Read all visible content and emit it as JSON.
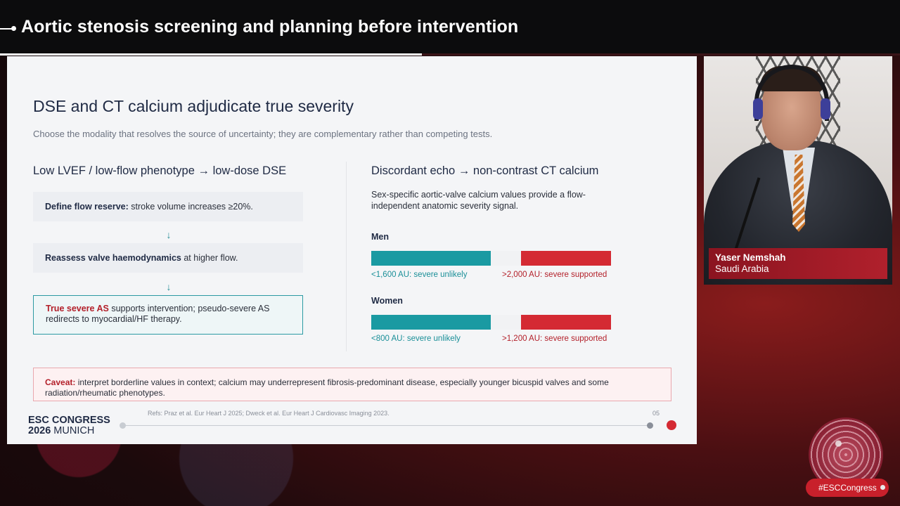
{
  "header": {
    "title": "Aortic stenosis screening and planning before intervention"
  },
  "slide": {
    "title": "DSE and CT calcium adjudicate true severity",
    "subtitle": "Choose the modality that resolves the source of uncertainty; they are complementary rather than competing tests.",
    "left": {
      "heading": "Low LVEF / low-flow phenotype → low-dose DSE",
      "steps": [
        {
          "bold": "Define flow reserve:",
          "text": " stroke volume increases ≥20%."
        },
        {
          "bold": "Reassess valve haemodynamics",
          "text": " at higher flow."
        },
        {
          "bold": "True severe AS",
          "text": " supports intervention; pseudo-severe AS redirects to myocardial/HF therapy."
        }
      ],
      "arrow": "↓"
    },
    "right": {
      "heading": "Discordant echo → non-contrast CT calcium",
      "description": "Sex-specific aortic-valve calcium values provide a flow-independent anatomic severity signal.",
      "groups": [
        {
          "label": "Men",
          "low_label": "<1,600 AU: severe unlikely",
          "high_label": ">2,000 AU: severe supported",
          "low_color": "#1a9aa2",
          "high_color": "#d42a33"
        },
        {
          "label": "Women",
          "low_label": "<800 AU: severe unlikely",
          "high_label": ">1,200 AU: severe supported",
          "low_color": "#1a9aa2",
          "high_color": "#d42a33"
        }
      ]
    },
    "caveat": {
      "bold": "Caveat:",
      "text": " interpret borderline values in context; calcium may underrepresent fibrosis-predominant disease, especially younger bicuspid valves and some radiation/rheumatic phenotypes."
    },
    "footer": {
      "logo_line1": "ESC CONGRESS",
      "logo_year": "2026",
      "logo_city": "MUNICH",
      "refs": "Refs: Praz et al. Eur Heart J 2025; Dweck et al. Eur Heart J Cardiovasc Imaging 2023.",
      "page": "05"
    }
  },
  "speaker": {
    "name": "Yaser Nemshah",
    "country": "Saudi Arabia"
  },
  "hashtag": "#ESCCongress",
  "colors": {
    "accent_red": "#d42a33",
    "accent_teal": "#1a9aa2",
    "navy": "#1f2a44"
  }
}
